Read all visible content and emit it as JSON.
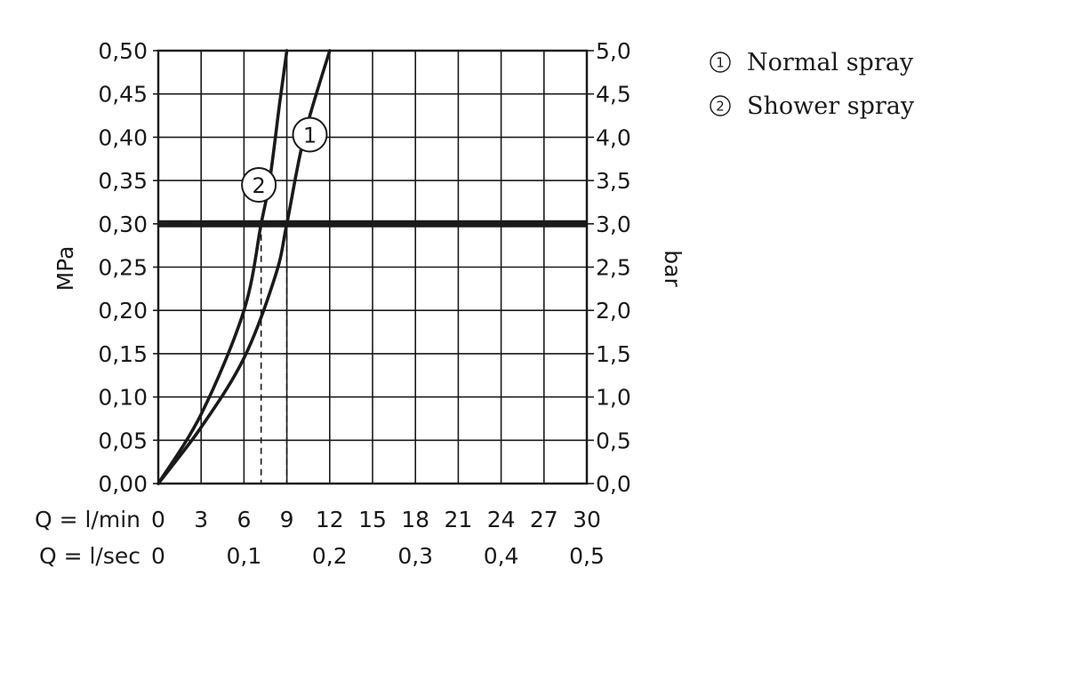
{
  "chart_data": {
    "type": "line",
    "x_rows": [
      {
        "label": "Q = l/min",
        "ticks": [
          "0",
          "3",
          "6",
          "9",
          "12",
          "15",
          "18",
          "21",
          "24",
          "27",
          "30"
        ],
        "values": [
          0,
          3,
          6,
          9,
          12,
          15,
          18,
          21,
          24,
          27,
          30
        ]
      },
      {
        "label": "Q = l/sec",
        "ticks": [
          "0",
          "0,1",
          "0,2",
          "0,3",
          "0,4",
          "0,5"
        ],
        "values": [
          0,
          6,
          12,
          18,
          24,
          30
        ]
      }
    ],
    "xlim": [
      0,
      30
    ],
    "ylabel_left": "MPa",
    "ylabel_right": "bar",
    "ylim": [
      0,
      0.5
    ],
    "yticks_left": [
      "0,00",
      "0,05",
      "0,10",
      "0,15",
      "0,20",
      "0,25",
      "0,30",
      "0,35",
      "0,40",
      "0,45",
      "0,50"
    ],
    "yticks_right": [
      "0,0",
      "0,5",
      "1,0",
      "1,5",
      "2,0",
      "2,5",
      "3,0",
      "3,5",
      "4,0",
      "4,5",
      "5,0"
    ],
    "ytick_values": [
      0,
      0.05,
      0.1,
      0.15,
      0.2,
      0.25,
      0.3,
      0.35,
      0.4,
      0.45,
      0.5
    ],
    "grid": true,
    "reference_line": {
      "y": 0.3
    },
    "series": [
      {
        "name": "Normal spray",
        "label": "1",
        "x": [
          0,
          3,
          6,
          8.2,
          9,
          10.2,
          12
        ],
        "y": [
          0,
          0.065,
          0.145,
          0.24,
          0.3,
          0.4,
          0.5
        ],
        "marker_x": 10.3,
        "marker_y": 0.403,
        "drop_x": 9.0
      },
      {
        "name": "Shower spray",
        "label": "2",
        "x": [
          0,
          3,
          6,
          7.2,
          7.8,
          8.5,
          9
        ],
        "y": [
          0,
          0.08,
          0.2,
          0.3,
          0.35,
          0.44,
          0.5
        ],
        "marker_x": 7.6,
        "marker_y": 0.345,
        "drop_x": 7.2
      }
    ]
  },
  "legend": [
    {
      "num": "1",
      "text": "Normal spray"
    },
    {
      "num": "2",
      "text": "Shower spray"
    }
  ]
}
